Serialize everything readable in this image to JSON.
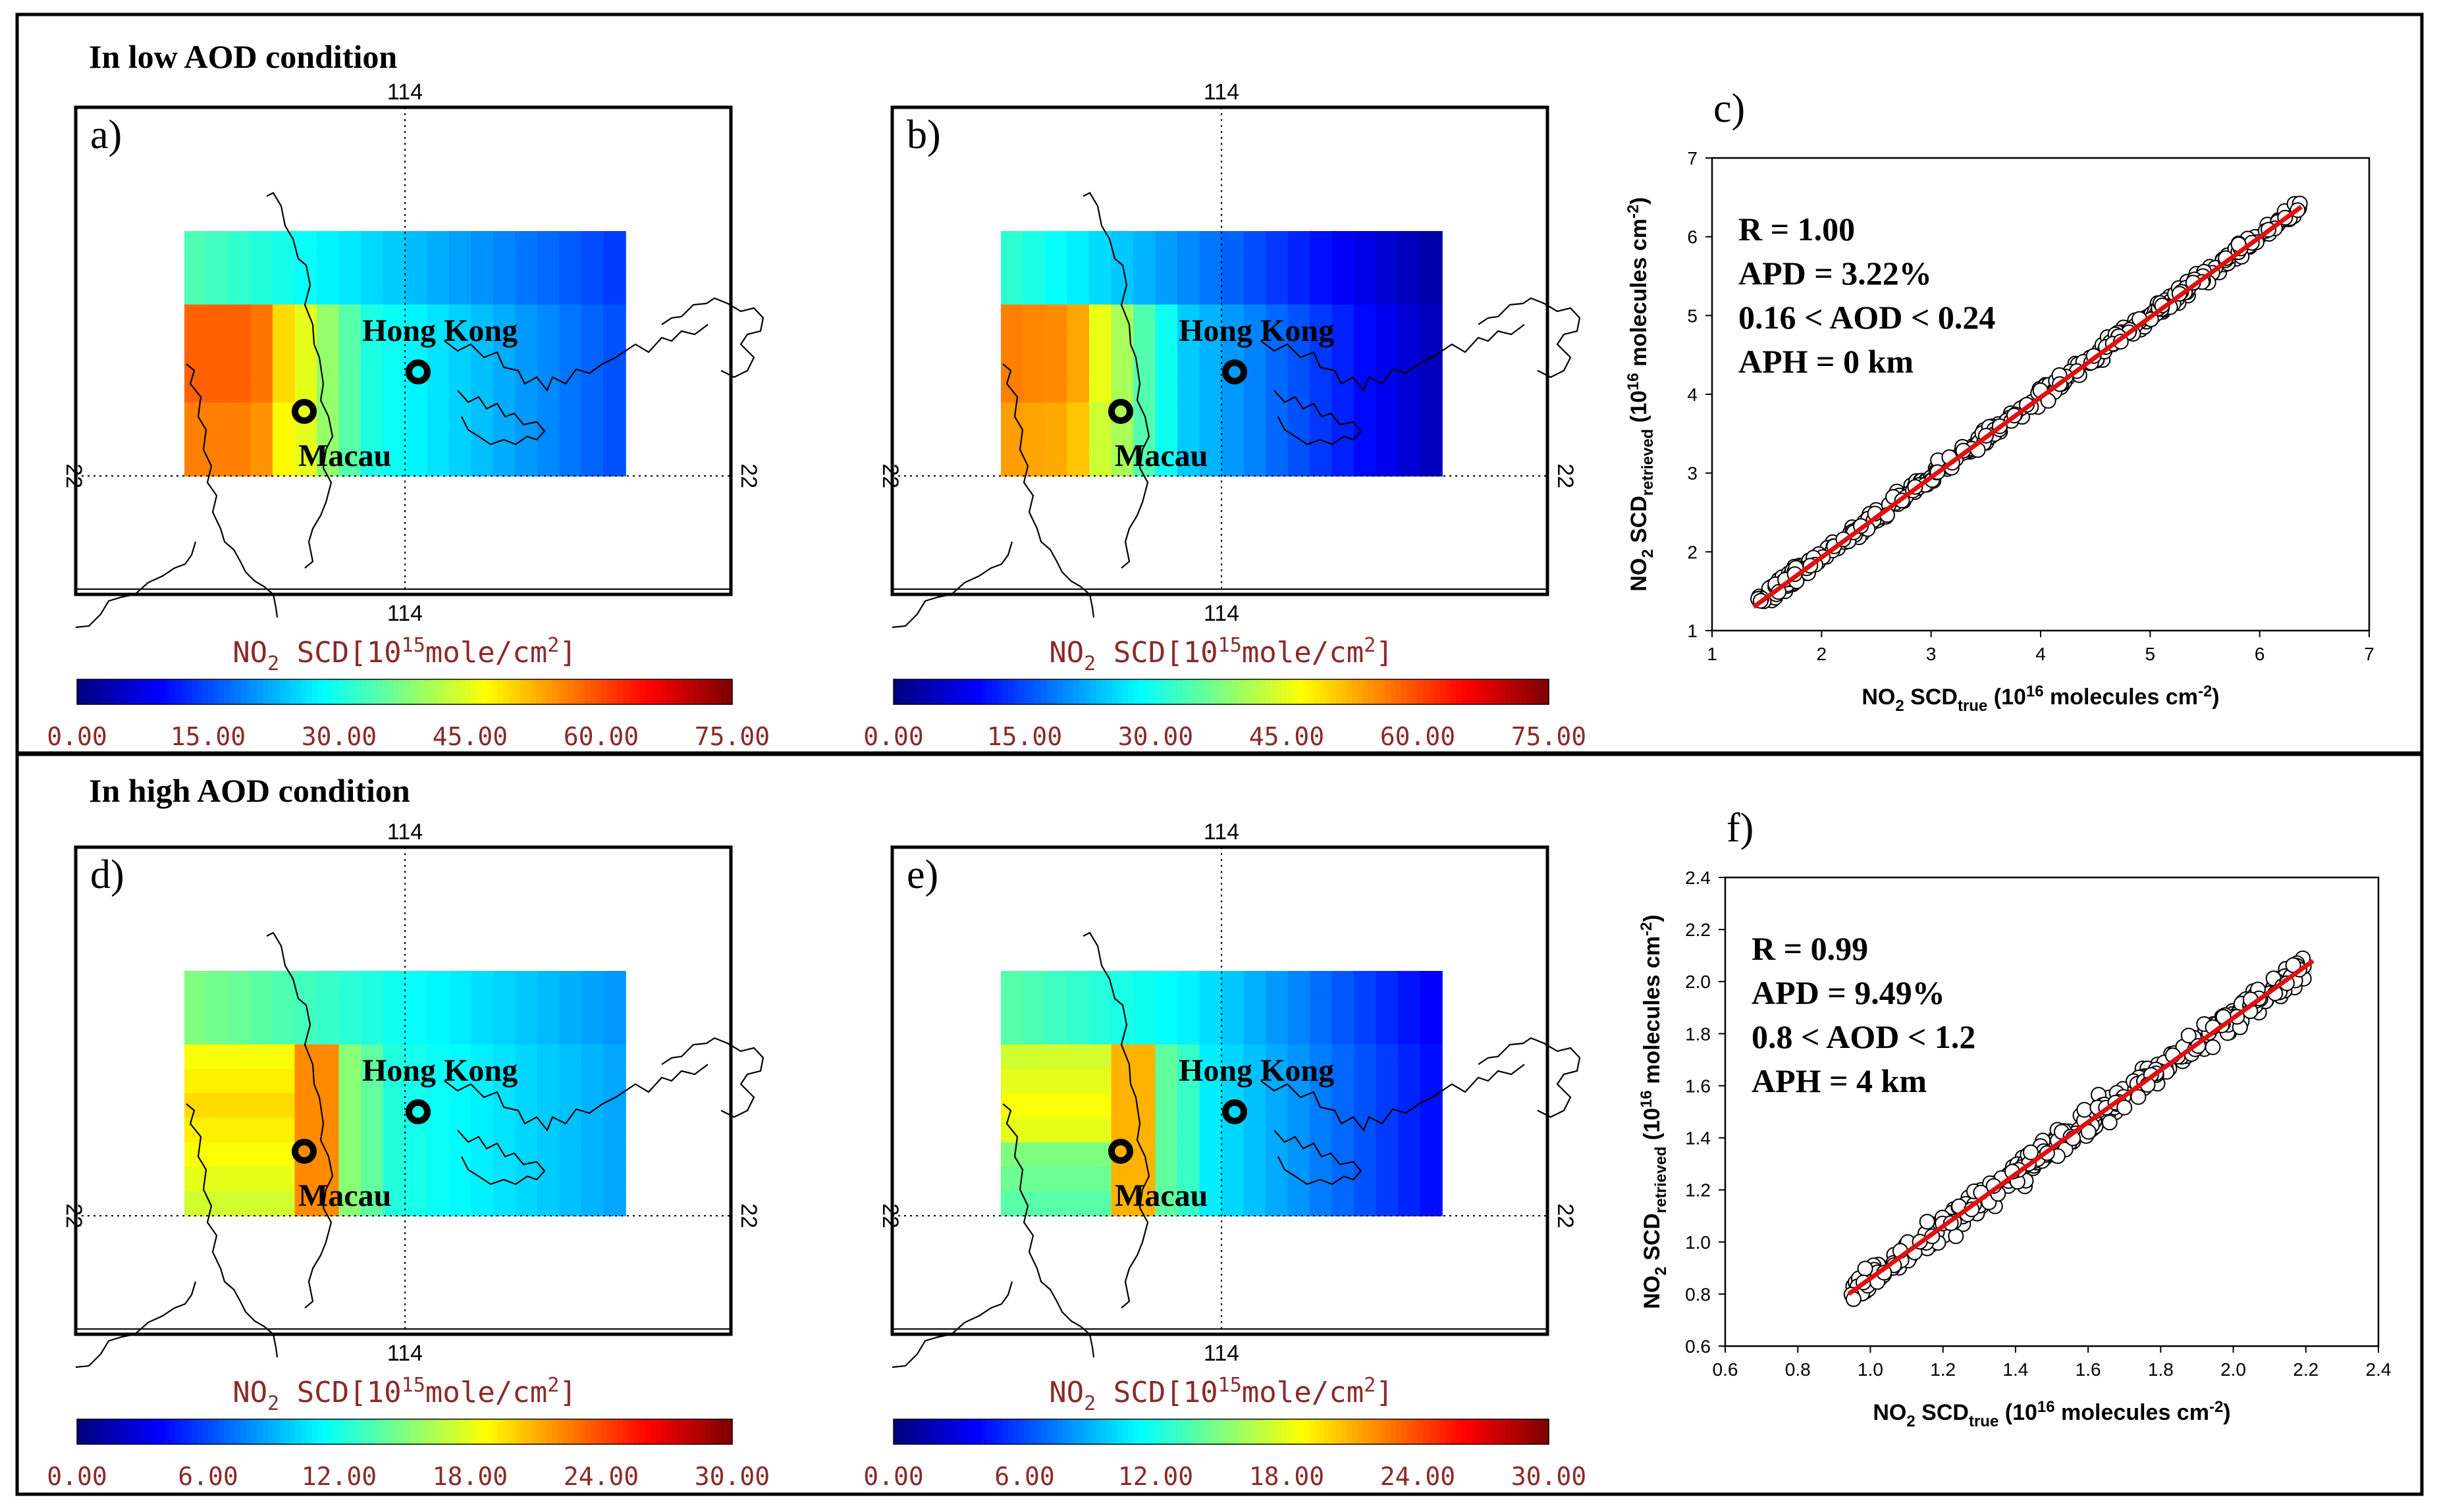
{
  "panels": {
    "low": {
      "title": "In low AOD condition",
      "maps": [
        {
          "label": "a)",
          "field": "a"
        },
        {
          "label": "b)",
          "field": "b"
        }
      ],
      "colorbar_ticks": [
        "0.00",
        "15.00",
        "30.00",
        "45.00",
        "60.00",
        "75.00"
      ],
      "vmax": 75
    },
    "high": {
      "title": "In high AOD condition",
      "maps": [
        {
          "label": "d)",
          "field": "d"
        },
        {
          "label": "e)",
          "field": "e"
        }
      ],
      "colorbar_ticks": [
        "0.00",
        "6.00",
        "12.00",
        "18.00",
        "24.00",
        "30.00"
      ],
      "vmax": 30
    }
  },
  "map_common": {
    "lon_label": "114",
    "lat_label": "22",
    "city1": "Hong Kong",
    "city2": "Macau",
    "colorbar_title_main": "NO",
    "colorbar_title_sub": "2",
    "colorbar_title_mid": " SCD[10",
    "colorbar_title_sup": "15",
    "colorbar_title_unit": "mole/cm",
    "colorbar_title_sup2": "2",
    "colorbar_title_end": "]"
  },
  "colors": {
    "colorbar_text": "#8b2a2a",
    "frame": "#000000",
    "fit_line": "#e01010"
  },
  "scatter_common": {
    "xlabel_main": "NO",
    "xlabel_sub1": "2",
    "xlabel_mid": " SCD",
    "xlabel_sub2": "true",
    "xlabel_tail": " (10",
    "xlabel_sup": "16",
    "xlabel_end": " molecules cm",
    "xlabel_sup2": "-2",
    "xlabel_close": ")",
    "ylabel_main": "NO",
    "ylabel_sub1": "2",
    "ylabel_mid": " SCD",
    "ylabel_sub2": "retrieved",
    "ylabel_tail": " (10",
    "ylabel_sup": "16",
    "ylabel_end": " molecules cm",
    "ylabel_sup2": "-2",
    "ylabel_close": ")"
  },
  "chart_data": [
    {
      "type": "scatter",
      "panel": "c)",
      "title": "",
      "xlabel": "NO2 SCDtrue (10^16 molecules cm^-2)",
      "ylabel": "NO2 SCDretrieved (10^16 molecules cm^-2)",
      "xlim": [
        1,
        7
      ],
      "ylim": [
        1,
        7
      ],
      "xticks": [
        "1",
        "2",
        "3",
        "4",
        "5",
        "6",
        "7"
      ],
      "yticks": [
        "1",
        "2",
        "3",
        "4",
        "5",
        "6",
        "7"
      ],
      "annotations": [
        "R = 1.00",
        "APD = 3.22%",
        "0.16 < AOD < 0.24",
        "APH = 0 km"
      ],
      "fit_line": {
        "x": [
          1.38,
          6.38
        ],
        "y": [
          1.3,
          6.38
        ]
      },
      "point_range": {
        "x": [
          1.38,
          6.38
        ],
        "slope": 1.015,
        "intercept": -0.08,
        "scatter": 0.06,
        "count": 420
      }
    },
    {
      "type": "scatter",
      "panel": "f)",
      "title": "",
      "xlabel": "NO2 SCDtrue (10^16 molecules cm^-2)",
      "ylabel": "NO2 SCDretrieved (10^16 molecules cm^-2)",
      "xlim": [
        0.6,
        2.4
      ],
      "ylim": [
        0.6,
        2.4
      ],
      "xticks": [
        "0.6",
        "0.8",
        "1.0",
        "1.2",
        "1.4",
        "1.6",
        "1.8",
        "2.0",
        "2.2",
        "2.4"
      ],
      "yticks": [
        "0.6",
        "0.8",
        "1.0",
        "1.2",
        "1.4",
        "1.6",
        "1.8",
        "2.0",
        "2.2",
        "2.4"
      ],
      "annotations": [
        "R = 0.99",
        "APD = 9.49%",
        "0.8 < AOD < 1.2",
        "APH = 4 km"
      ],
      "fit_line": {
        "x": [
          0.94,
          2.22
        ],
        "y": [
          0.8,
          2.08
        ]
      },
      "point_range": {
        "x": [
          0.94,
          2.2
        ],
        "slope": 1.0,
        "intercept": -0.14,
        "scatter": 0.035,
        "count": 340
      }
    }
  ]
}
